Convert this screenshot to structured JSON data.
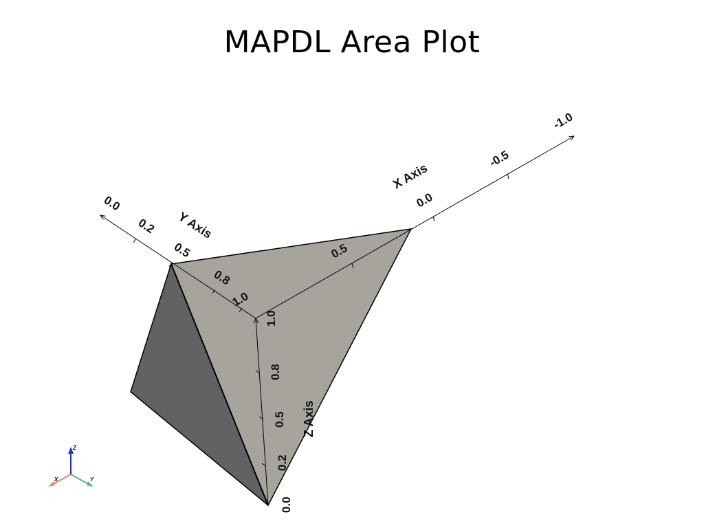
{
  "title": "MAPDL Area Plot",
  "x_axis": {
    "title": "X Axis",
    "ticks": [
      "0.0",
      "-0.5",
      "-1.0"
    ],
    "extra_tick": "0.5"
  },
  "y_axis": {
    "title": "Y Axis",
    "ticks": [
      "0.0",
      "0.2",
      "0.5",
      "0.8",
      "1.0"
    ]
  },
  "z_axis": {
    "title": "Z Axis",
    "ticks": [
      "0.0",
      "0.2",
      "0.5",
      "0.8",
      "1.0"
    ]
  },
  "orientation_triad": {
    "x_label": "X",
    "y_label": "Y",
    "z_label": "Z",
    "x_color": "#e8846c",
    "y_color": "#4fb882",
    "z_color": "#1f2fd6"
  },
  "colors": {
    "face_light": "#a7a49e",
    "face_dark": "#626264",
    "edge": "#000000"
  }
}
